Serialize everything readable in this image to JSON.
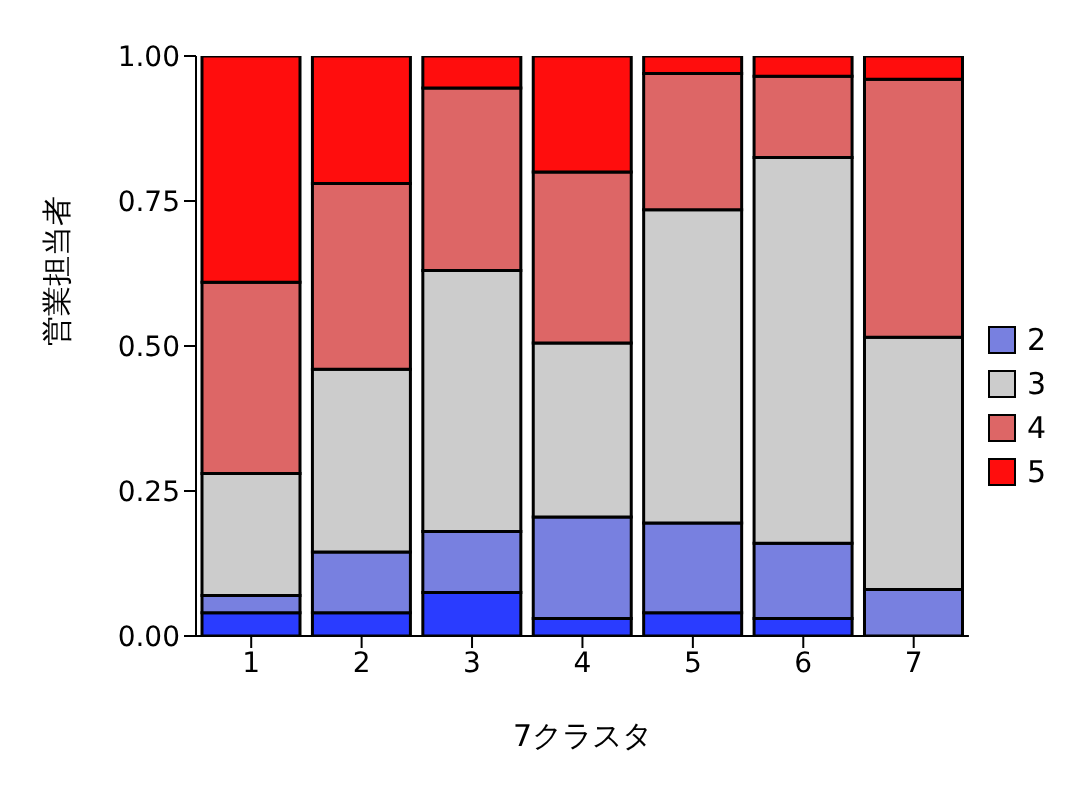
{
  "chart_data": {
    "type": "bar",
    "stacked": true,
    "xlabel": "7クラスタ",
    "ylabel": "営業担当者",
    "categories": [
      "1",
      "2",
      "3",
      "4",
      "5",
      "6",
      "7"
    ],
    "series": [
      {
        "color": "#2a3cff",
        "values": [
          0.04,
          0.04,
          0.075,
          0.03,
          0.04,
          0.03,
          0
        ]
      },
      {
        "name": "2",
        "color": "#7880e0",
        "values": [
          0.03,
          0.105,
          0.105,
          0.175,
          0.155,
          0.13,
          0.08
        ]
      },
      {
        "name": "3",
        "color": "#cccccc",
        "values": [
          0.21,
          0.315,
          0.45,
          0.3,
          0.54,
          0.665,
          0.435
        ]
      },
      {
        "name": "4",
        "color": "#dd6666",
        "values": [
          0.33,
          0.32,
          0.315,
          0.295,
          0.235,
          0.14,
          0.445
        ]
      },
      {
        "name": "5",
        "color": "#ff0d0d",
        "values": [
          0.39,
          0.22,
          0.055,
          0.2,
          0.03,
          0.035,
          0.04
        ]
      }
    ],
    "ylim": [
      0,
      1
    ],
    "yticks": [
      {
        "value": 0,
        "label": "0.00"
      },
      {
        "value": 0.25,
        "label": "0.25"
      },
      {
        "value": 0.5,
        "label": "0.50"
      },
      {
        "value": 0.75,
        "label": "0.75"
      },
      {
        "value": 1,
        "label": "1.00"
      }
    ],
    "grid": false,
    "legend": "right"
  }
}
